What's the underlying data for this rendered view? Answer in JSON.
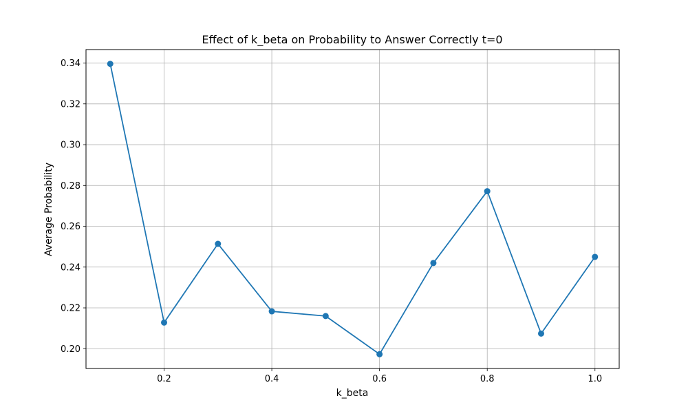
{
  "chart_data": {
    "type": "line",
    "title": "Effect of k_beta on Probability to Answer Correctly t=0",
    "xlabel": "k_beta",
    "ylabel": "Average Probability",
    "x": [
      0.1,
      0.2,
      0.3,
      0.4,
      0.5,
      0.6,
      0.7,
      0.8,
      0.9,
      1.0
    ],
    "series": [
      {
        "values": [
          0.3396,
          0.2128,
          0.2514,
          0.2183,
          0.216,
          0.1973,
          0.242,
          0.2772,
          0.2074,
          0.245
        ],
        "color": "#1f77b4",
        "marker": "circle"
      }
    ],
    "xlim": [
      0.055,
      1.045
    ],
    "ylim": [
      0.1903,
      0.3466
    ],
    "xticks": [
      0.2,
      0.4,
      0.6,
      0.8,
      1.0
    ],
    "xtick_labels": [
      "0.2",
      "0.4",
      "0.6",
      "0.8",
      "1.0"
    ],
    "yticks": [
      0.2,
      0.22,
      0.24,
      0.26,
      0.28,
      0.3,
      0.32,
      0.34
    ],
    "ytick_labels": [
      "0.20",
      "0.22",
      "0.24",
      "0.26",
      "0.28",
      "0.30",
      "0.32",
      "0.34"
    ],
    "grid": true,
    "grid_color": "#b0b0b0"
  }
}
